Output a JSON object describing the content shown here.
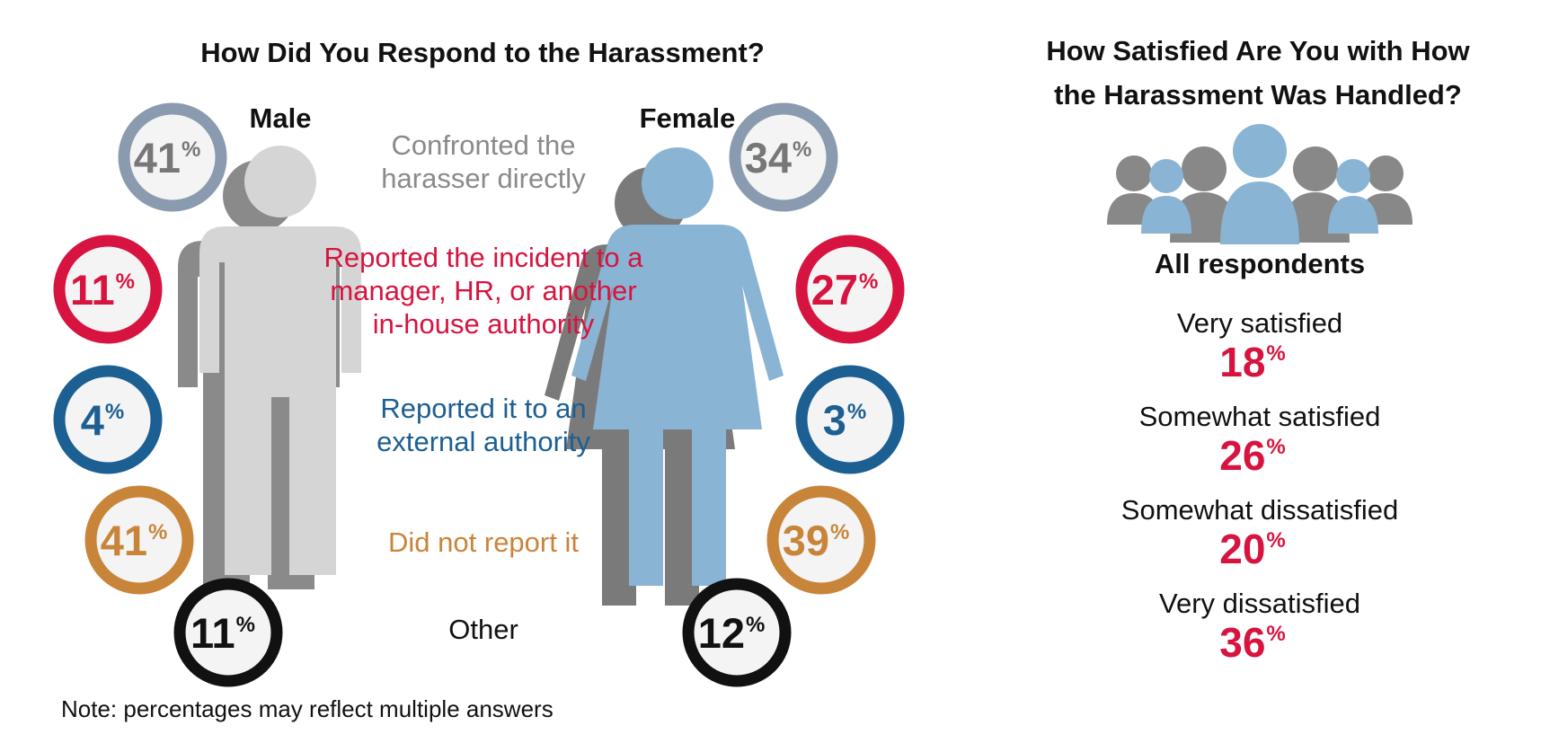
{
  "left_chart": {
    "title": "How Did You Respond to the Harassment?",
    "male_label": "Male",
    "female_label": "Female",
    "note": "Note: percentages may reflect multiple answers"
  },
  "right_chart": {
    "title_line1": "How Satisfied Are You with How",
    "title_line2": "the Harassment Was Handled?",
    "group_label": "All respondents"
  },
  "colors": {
    "confronted": "#8a9bb0",
    "reported_internal": "#d6143f",
    "reported_external": "#1c5f92",
    "did_not_report": "#c8853a",
    "other": "#111111",
    "satisfaction_value": "#d6143f",
    "male_figure": "#d5d5d5",
    "female_figure": "#8ab4d3"
  },
  "chart_data": [
    {
      "type": "bar",
      "title": "How Did You Respond to the Harassment?",
      "categories": [
        "Confronted the harasser directly",
        "Reported the incident to a manager, HR, or another in-house authority",
        "Reported it to an external authority",
        "Did not report it",
        "Other"
      ],
      "category_lines": [
        [
          "Confronted the",
          "harasser directly"
        ],
        [
          "Reported the incident to a",
          "manager, HR, or another",
          "in-house authority"
        ],
        [
          "Reported it to an",
          "external authority"
        ],
        [
          "Did not report it"
        ],
        [
          "Other"
        ]
      ],
      "series": [
        {
          "name": "Male",
          "values": [
            41,
            11,
            4,
            41,
            11
          ]
        },
        {
          "name": "Female",
          "values": [
            34,
            27,
            3,
            39,
            12
          ]
        }
      ],
      "unit": "%"
    },
    {
      "type": "table",
      "title": "How Satisfied Are You with How the Harassment Was Handled?",
      "group": "All respondents",
      "categories": [
        "Very satisfied",
        "Somewhat satisfied",
        "Somewhat dissatisfied",
        "Very dissatisfied"
      ],
      "values": [
        18,
        26,
        20,
        36
      ],
      "unit": "%"
    }
  ]
}
